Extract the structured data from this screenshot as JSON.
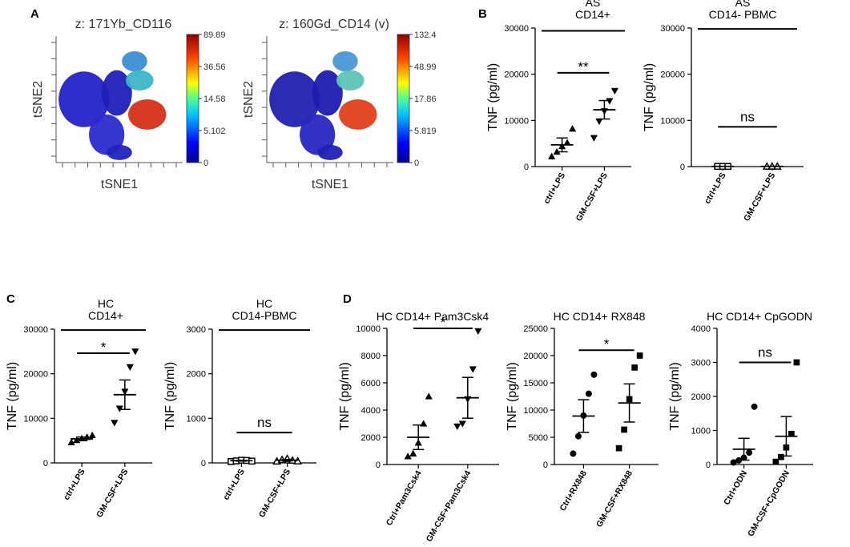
{
  "panel_letters": {
    "a": "A",
    "b": "B",
    "c": "C",
    "d": "D"
  },
  "chart_data": [
    {
      "id": "A1",
      "type": "heatmap",
      "title": "z: 171Yb_CD116",
      "xlabel": "tSNE1",
      "ylabel": "tSNE2",
      "colorbar_ticks": [
        "89.89",
        "36.56",
        "14.58",
        "5.102",
        "0"
      ],
      "blobs": [
        {
          "cx": 0.22,
          "cy": 0.5,
          "rx": 0.2,
          "ry": 0.22,
          "color": "#2323c8"
        },
        {
          "cx": 0.4,
          "cy": 0.78,
          "rx": 0.14,
          "ry": 0.16,
          "color": "#2a2acc"
        },
        {
          "cx": 0.48,
          "cy": 0.45,
          "rx": 0.12,
          "ry": 0.18,
          "color": "#1f1fb8"
        },
        {
          "cx": 0.62,
          "cy": 0.2,
          "rx": 0.1,
          "ry": 0.08,
          "color": "#3a8fd0"
        },
        {
          "cx": 0.66,
          "cy": 0.35,
          "rx": 0.11,
          "ry": 0.08,
          "color": "#3cb6c8"
        },
        {
          "cx": 0.72,
          "cy": 0.62,
          "rx": 0.15,
          "ry": 0.12,
          "color": "#d63018"
        },
        {
          "cx": 0.5,
          "cy": 0.92,
          "rx": 0.1,
          "ry": 0.06,
          "color": "#2222bb"
        }
      ]
    },
    {
      "id": "A2",
      "type": "heatmap",
      "title": "z: 160Gd_CD14 (v)",
      "xlabel": "tSNE1",
      "ylabel": "tSNE2",
      "colorbar_ticks": [
        "132.4",
        "48.99",
        "17.86",
        "5.819",
        "0"
      ],
      "blobs": [
        {
          "cx": 0.22,
          "cy": 0.5,
          "rx": 0.2,
          "ry": 0.22,
          "color": "#2020b0"
        },
        {
          "cx": 0.4,
          "cy": 0.78,
          "rx": 0.14,
          "ry": 0.16,
          "color": "#2727c2"
        },
        {
          "cx": 0.48,
          "cy": 0.45,
          "rx": 0.12,
          "ry": 0.18,
          "color": "#1c1cae"
        },
        {
          "cx": 0.62,
          "cy": 0.2,
          "rx": 0.1,
          "ry": 0.08,
          "color": "#4a98d4"
        },
        {
          "cx": 0.66,
          "cy": 0.35,
          "rx": 0.11,
          "ry": 0.08,
          "color": "#60c4b8"
        },
        {
          "cx": 0.72,
          "cy": 0.62,
          "rx": 0.15,
          "ry": 0.12,
          "color": "#e0401c"
        },
        {
          "cx": 0.5,
          "cy": 0.92,
          "rx": 0.1,
          "ry": 0.06,
          "color": "#2121b4"
        }
      ]
    },
    {
      "id": "B1",
      "type": "scatter",
      "title": [
        "AS",
        "CD14+"
      ],
      "ylabel": "TNF (pg/ml)",
      "ylim": [
        0,
        30000
      ],
      "yticks": [
        0,
        10000,
        20000,
        30000
      ],
      "categories": [
        "ctrl+LPS",
        "GM-CSF+LPS"
      ],
      "markers": [
        "triangle-up",
        "triangle-down"
      ],
      "filled": true,
      "points": [
        [
          2200,
          3200,
          4400,
          5200,
          8200
        ],
        [
          6200,
          9800,
          12000,
          14200,
          16400
        ]
      ],
      "mean": [
        4700,
        12300
      ],
      "sem": [
        1500,
        2000
      ],
      "sig": [
        {
          "label": "**",
          "y": 20300,
          "topline": false
        }
      ],
      "topline_y": 29400
    },
    {
      "id": "B2",
      "type": "scatter",
      "title": [
        "AS",
        "CD14- PBMC"
      ],
      "ylabel": "TNF (pg/ml)",
      "ylim": [
        0,
        30000
      ],
      "yticks": [
        0,
        10000,
        20000,
        30000
      ],
      "categories": [
        "ctrl+LPS",
        "GM-CSF+LPS"
      ],
      "markers": [
        "square",
        "triangle-up"
      ],
      "filled": false,
      "points": [
        [
          40,
          40,
          40
        ],
        [
          40,
          40,
          40
        ]
      ],
      "mean": [
        40,
        40
      ],
      "sem": [
        0,
        0
      ],
      "sig": [
        {
          "label": "ns",
          "y": 8600,
          "topline": false
        }
      ],
      "topline_y": 29800
    },
    {
      "id": "C1",
      "type": "scatter",
      "title": [
        "HC",
        "CD14+"
      ],
      "ylabel": "TNF (pg/ml)",
      "ylim": [
        0,
        30000
      ],
      "yticks": [
        0,
        10000,
        20000,
        30000
      ],
      "categories": [
        "ctrl+LPS",
        "GM-CSF+LPS"
      ],
      "markers": [
        "triangle-up",
        "triangle-down"
      ],
      "filled": true,
      "points": [
        [
          4600,
          5100,
          5500,
          5800,
          6200
        ],
        [
          9000,
          12200,
          16000,
          21500,
          25000
        ]
      ],
      "mean": [
        5400,
        15300
      ],
      "sem": [
        400,
        3300
      ],
      "sig": [
        {
          "label": "*",
          "y": 24600,
          "topline": false
        }
      ],
      "topline_y": 29800
    },
    {
      "id": "C2",
      "type": "scatter",
      "title": [
        "HC",
        "CD14-PBMC"
      ],
      "ylabel": "TNF (pg/ml)",
      "ylim": [
        0,
        3000
      ],
      "yticks": [
        0,
        1000,
        2000,
        3000
      ],
      "categories": [
        "ctrl+LPS",
        "GM-CSF+LPS"
      ],
      "markers": [
        "square",
        "triangle-up"
      ],
      "filled": false,
      "points": [
        [
          30,
          45,
          60,
          55,
          40
        ],
        [
          35,
          70,
          95,
          55,
          40
        ]
      ],
      "mean": [
        50,
        60
      ],
      "sem": [
        10,
        15
      ],
      "sig": [
        {
          "label": "ns",
          "y": 680,
          "topline": false
        }
      ],
      "topline_y": 2980
    },
    {
      "id": "D1",
      "type": "scatter",
      "title": [
        "HC CD14+  Pam3Csk4"
      ],
      "ylabel": "TNF (pg/ml)",
      "ylim": [
        0,
        10000
      ],
      "yticks": [
        0,
        2000,
        4000,
        6000,
        8000,
        10000
      ],
      "categories": [
        "Ctrl+Pam3Csk4",
        "GM-CSF+Pam3Csk4"
      ],
      "markers": [
        "triangle-up",
        "triangle-down"
      ],
      "filled": true,
      "points": [
        [
          600,
          800,
          1600,
          3000,
          5000
        ],
        [
          2800,
          3000,
          4800,
          7000,
          9800
        ]
      ],
      "mean": [
        2000,
        4900
      ],
      "sem": [
        900,
        1500
      ],
      "sig": [
        {
          "label": "*",
          "y": 10000,
          "topline": false
        }
      ],
      "topline_y": null
    },
    {
      "id": "D2",
      "type": "scatter",
      "title": [
        "HC CD14+ RX848"
      ],
      "ylabel": "TNF (pg/ml)",
      "ylim": [
        0,
        25000
      ],
      "yticks": [
        0,
        5000,
        10000,
        15000,
        20000,
        25000
      ],
      "categories": [
        "Ctrl+RX848",
        "GM-CSF+RX848"
      ],
      "markers": [
        "circle",
        "square"
      ],
      "filled": true,
      "points": [
        [
          2000,
          5200,
          9000,
          13000,
          16500
        ],
        [
          3000,
          6400,
          12000,
          17800,
          20000
        ]
      ],
      "mean": [
        8900,
        11300
      ],
      "sem": [
        3000,
        3500
      ],
      "sig": [
        {
          "label": "*",
          "y": 21000,
          "topline": false
        }
      ],
      "topline_y": null
    },
    {
      "id": "D3",
      "type": "scatter",
      "title": [
        "HC  CD14+  CpGODN"
      ],
      "ylabel": "TNF (pg/ml)",
      "ylim": [
        0,
        4000
      ],
      "yticks": [
        0,
        1000,
        2000,
        3000,
        4000
      ],
      "categories": [
        "Ctrl+ODN",
        "GM-CSF+CpGODN"
      ],
      "markers": [
        "circle",
        "square"
      ],
      "filled": true,
      "points": [
        [
          60,
          120,
          200,
          350,
          1700
        ],
        [
          80,
          220,
          500,
          900,
          3000
        ]
      ],
      "mean": [
        450,
        830
      ],
      "sem": [
        320,
        580
      ],
      "sig": [
        {
          "label": "ns",
          "y": 3000,
          "topline": false
        }
      ],
      "topline_y": null
    }
  ]
}
